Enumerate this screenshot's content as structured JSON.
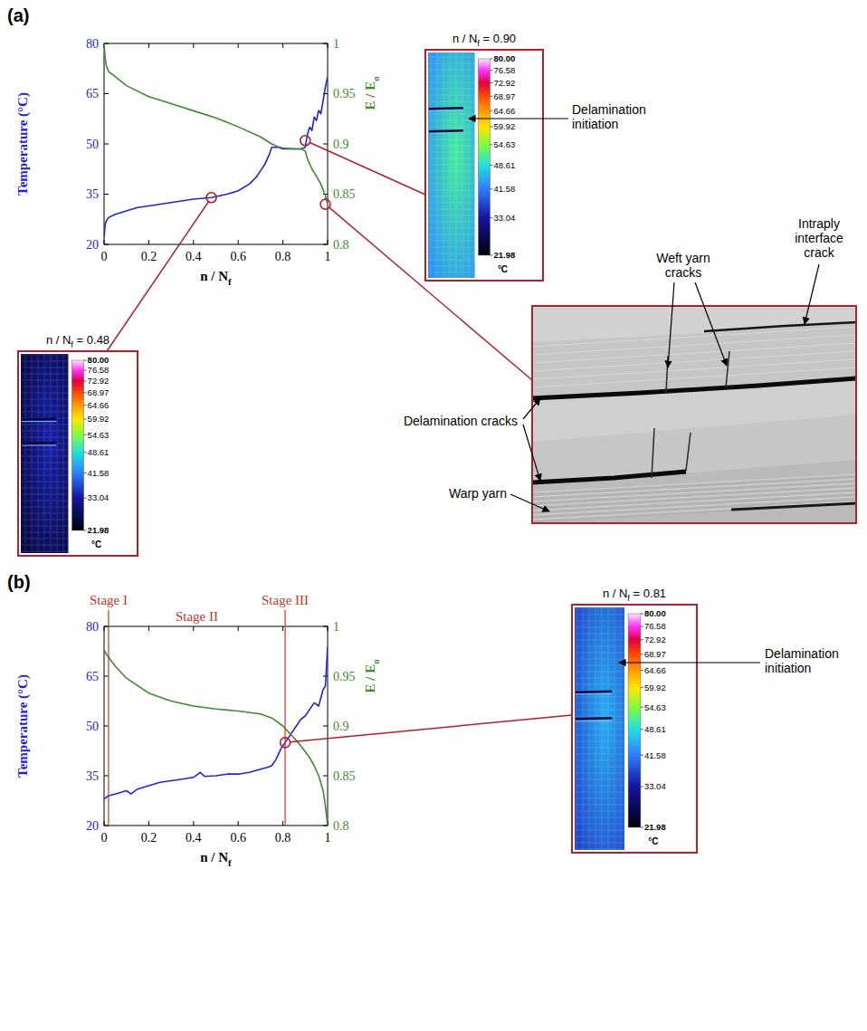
{
  "chart_data": [
    {
      "label": "(a)",
      "type": "line",
      "xlabel": {
        "text": "n / N",
        "subscript": "f"
      },
      "ylabel": "Temperature (°C)",
      "y2label": {
        "text": "E / E",
        "subscript": "o"
      },
      "xlim": [
        0,
        1
      ],
      "xticks": [
        0,
        0.2,
        0.4,
        0.6,
        0.8,
        1
      ],
      "ylim": [
        20,
        80
      ],
      "yticks": [
        20,
        35,
        50,
        65,
        80
      ],
      "y2lim": [
        0.8,
        1
      ],
      "y2ticks": [
        0.8,
        0.85,
        0.9,
        0.95,
        1
      ],
      "series": [
        {
          "color": "#2323d6",
          "x": [
            0,
            0.005,
            0.01,
            0.02,
            0.05,
            0.1,
            0.15,
            0.2,
            0.3,
            0.4,
            0.48,
            0.55,
            0.6,
            0.65,
            0.68,
            0.7,
            0.72,
            0.74,
            0.75,
            0.78,
            0.8,
            0.85,
            0.88,
            0.9,
            0.91,
            0.92,
            0.93,
            0.94,
            0.95,
            0.96,
            0.97,
            0.98,
            0.99,
            1
          ],
          "values": [
            22,
            26,
            27,
            28,
            29,
            30,
            31,
            31.5,
            32.5,
            33.5,
            34,
            35,
            36,
            38,
            40,
            42,
            44,
            47,
            49,
            49,
            48.5,
            48.5,
            48.5,
            49,
            53,
            55,
            54,
            58,
            57,
            60,
            59,
            63,
            67,
            70
          ]
        },
        {
          "color": "#3d8b2f",
          "axis": "y2",
          "x": [
            0,
            0.005,
            0.01,
            0.02,
            0.05,
            0.1,
            0.2,
            0.3,
            0.4,
            0.5,
            0.6,
            0.7,
            0.75,
            0.78,
            0.8,
            0.85,
            0.88,
            0.9,
            0.91,
            0.93,
            0.95,
            0.97,
            0.99,
            1
          ],
          "values": [
            1,
            0.985,
            0.978,
            0.972,
            0.967,
            0.958,
            0.947,
            0.94,
            0.933,
            0.926,
            0.917,
            0.907,
            0.9,
            0.897,
            0.896,
            0.895,
            0.895,
            0.893,
            0.885,
            0.875,
            0.868,
            0.86,
            0.848,
            0.84
          ]
        }
      ],
      "insets": [
        {
          "kind": "thermal",
          "x": 0.48,
          "y": 34,
          "axis": "y",
          "caption": {
            "text": "n / N",
            "subscript": "f",
            "suffix": " = 0.48"
          },
          "colorbar": {
            "range": [
              21.98,
              80
            ],
            "ticks": [
              {
                "value": 80,
                "label": "80.00"
              },
              76.58,
              72.92,
              68.97,
              64.66,
              59.92,
              54.63,
              48.61,
              41.58,
              33.04,
              21.98
            ],
            "unit": "°C"
          }
        },
        {
          "kind": "thermal",
          "x": 0.9,
          "y": 51,
          "axis": "y",
          "caption": {
            "text": "n / N",
            "subscript": "f",
            "suffix": " = 0.90"
          },
          "annotation": "Delamination initiation",
          "colorbar": {
            "range": [
              21.98,
              80
            ],
            "ticks": [
              {
                "value": 80,
                "label": "80.00"
              },
              76.58,
              72.92,
              68.97,
              64.66,
              59.92,
              54.63,
              48.61,
              41.58,
              33.04,
              21.98
            ],
            "unit": "°C"
          }
        },
        {
          "kind": "micrograph",
          "x": 0.99,
          "y": 0.84,
          "axis": "y2",
          "labels": [
            "Delamination cracks",
            "Weft yarn cracks",
            "Intraply interface crack",
            "Warp yarn"
          ]
        }
      ]
    },
    {
      "label": "(b)",
      "type": "line",
      "xlabel": {
        "text": "n / N",
        "subscript": "f"
      },
      "ylabel": "Temperature (°C)",
      "y2label": {
        "text": "E / E",
        "subscript": "o"
      },
      "xlim": [
        0,
        1
      ],
      "xticks": [
        0,
        0.2,
        0.4,
        0.6,
        0.8,
        1
      ],
      "ylim": [
        20,
        80
      ],
      "yticks": [
        20,
        35,
        50,
        65,
        80
      ],
      "y2lim": [
        0.8,
        1
      ],
      "y2ticks": [
        0.8,
        0.85,
        0.9,
        0.95,
        1
      ],
      "series": [
        {
          "color": "#2323d6",
          "x": [
            0,
            0.02,
            0.05,
            0.1,
            0.12,
            0.15,
            0.2,
            0.25,
            0.3,
            0.35,
            0.4,
            0.43,
            0.45,
            0.5,
            0.55,
            0.6,
            0.65,
            0.7,
            0.73,
            0.75,
            0.77,
            0.79,
            0.8,
            0.82,
            0.84,
            0.86,
            0.88,
            0.9,
            0.92,
            0.94,
            0.96,
            0.98,
            0.99,
            1
          ],
          "values": [
            28,
            29,
            29.5,
            30.5,
            29.5,
            31,
            32,
            33,
            33.5,
            34,
            34.5,
            36,
            34.8,
            35,
            35.5,
            35.5,
            36,
            37,
            37.5,
            38,
            40,
            43,
            44,
            46,
            48,
            50,
            52,
            53,
            55,
            57,
            56,
            61,
            62,
            74
          ]
        },
        {
          "color": "#3d8b2f",
          "axis": "y2",
          "x": [
            0,
            0.01,
            0.03,
            0.05,
            0.1,
            0.2,
            0.3,
            0.4,
            0.5,
            0.6,
            0.7,
            0.75,
            0.8,
            0.82,
            0.85,
            0.88,
            0.9,
            0.92,
            0.94,
            0.96,
            0.98,
            0.99,
            1
          ],
          "values": [
            0.977,
            0.972,
            0.966,
            0.96,
            0.948,
            0.933,
            0.925,
            0.92,
            0.917,
            0.915,
            0.912,
            0.908,
            0.9,
            0.895,
            0.888,
            0.88,
            0.874,
            0.868,
            0.86,
            0.85,
            0.835,
            0.82,
            0.8
          ]
        }
      ],
      "stage_boundaries": [
        0.02,
        0.81
      ],
      "stage_labels": [
        "Stage I",
        "Stage II",
        "Stage III"
      ],
      "insets": [
        {
          "kind": "thermal",
          "x": 0.81,
          "y": 45,
          "axis": "y",
          "caption": {
            "text": "n / N",
            "subscript": "f",
            "suffix": " = 0.81"
          },
          "annotation": "Delamination initiation",
          "colorbar": {
            "range": [
              21.98,
              80
            ],
            "ticks": [
              {
                "value": 80,
                "label": "80.00"
              },
              76.58,
              72.92,
              68.97,
              64.66,
              59.92,
              54.63,
              48.61,
              41.58,
              33.04,
              21.98
            ],
            "unit": "°C"
          }
        }
      ]
    }
  ]
}
